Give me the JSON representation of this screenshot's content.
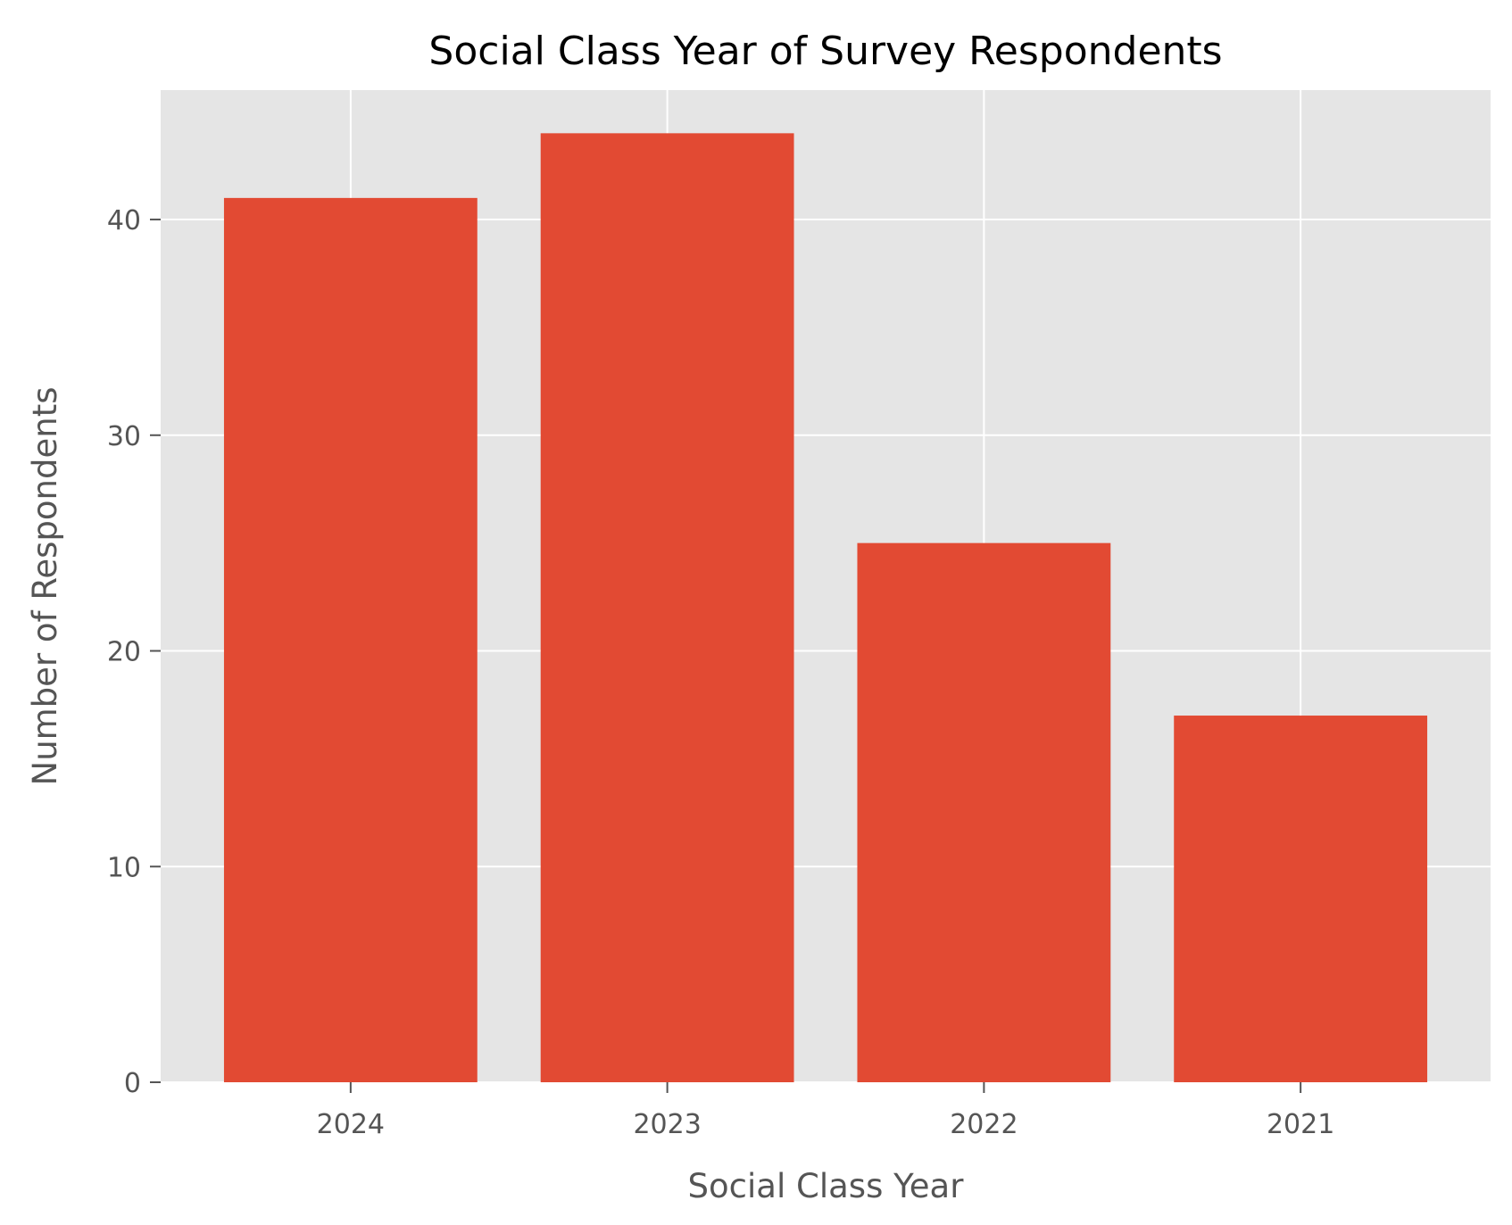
{
  "chart_data": {
    "type": "bar",
    "title": "Social Class Year of Survey Respondents",
    "xlabel": "Social Class Year",
    "ylabel": "Number of Respondents",
    "categories": [
      "2024",
      "2023",
      "2022",
      "2021"
    ],
    "values": [
      41,
      44,
      25,
      17
    ],
    "ylim": [
      0,
      46
    ],
    "yticks": [
      0,
      10,
      20,
      30,
      40
    ],
    "grid": true,
    "colors": {
      "bar": "#E24A33",
      "plot_background": "#E5E5E5",
      "grid": "#FFFFFF",
      "tick": "#555555"
    }
  }
}
